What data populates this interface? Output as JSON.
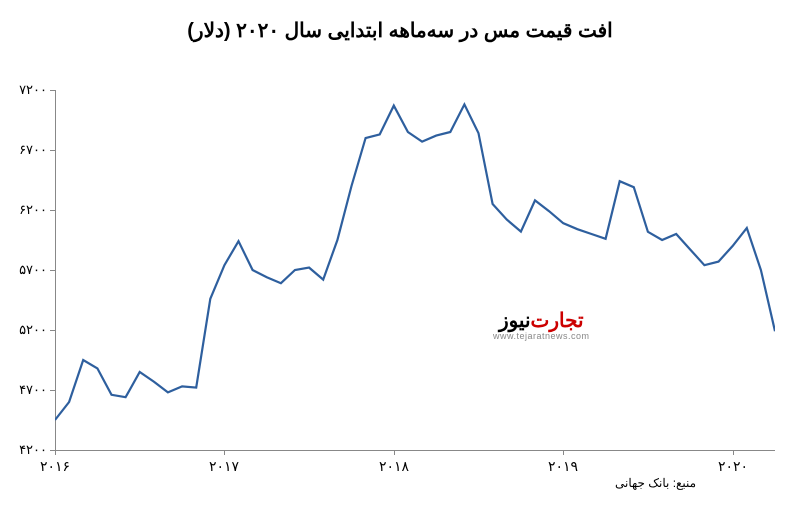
{
  "chart": {
    "type": "line",
    "title": "افت قیمت مس در سه‌ماهه ابتدایی سال ۲۰۲۰ (دلار)",
    "title_fontsize": 20,
    "background_color": "#ffffff",
    "line_color": "#2e5f9e",
    "axis_color": "#888888",
    "text_color": "#000000",
    "line_width": 2.2,
    "y": {
      "min": 4200,
      "max": 7200,
      "ticks": [
        4200,
        4700,
        5200,
        5700,
        6200,
        6700,
        7200
      ],
      "tick_labels": [
        "۴۲۰۰",
        "۴۷۰۰",
        "۵۲۰۰",
        "۵۷۰۰",
        "۶۲۰۰",
        "۶۷۰۰",
        "۷۲۰۰"
      ]
    },
    "x": {
      "min": 0,
      "max": 51,
      "ticks": [
        0,
        12,
        24,
        36,
        48
      ],
      "tick_labels": [
        "۲۰۱۶",
        "۲۰۱۷",
        "۲۰۱۸",
        "۲۰۱۹",
        "۲۰۲۰"
      ]
    },
    "series": [
      4450,
      4600,
      4950,
      4880,
      4660,
      4640,
      4850,
      4770,
      4680,
      4730,
      4720,
      5460,
      5740,
      5940,
      5700,
      5640,
      5590,
      5700,
      5720,
      5620,
      5950,
      6400,
      6800,
      6830,
      7070,
      6850,
      6770,
      6820,
      6850,
      7080,
      6840,
      6250,
      6120,
      6020,
      6280,
      6190,
      6090,
      6040,
      6000,
      5960,
      6440,
      6390,
      6018,
      5950,
      6000,
      5870,
      5740,
      5770,
      5900,
      6050,
      5700,
      5190
    ],
    "source": "منبع: بانک جهانی",
    "watermark": {
      "brand_red": "تجارت",
      "brand_black": "‌نیوز",
      "link": "www.tejaratnews.com"
    }
  }
}
